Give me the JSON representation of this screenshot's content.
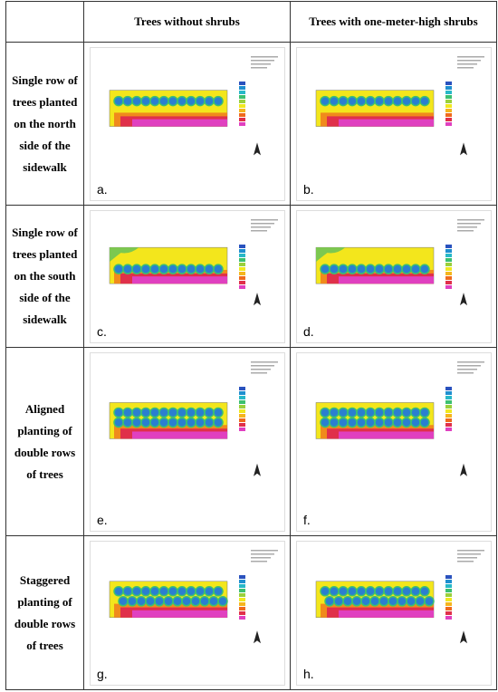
{
  "header": {
    "col1": "Trees without shrubs",
    "col2": "Trees with one-meter-high shrubs"
  },
  "rows": [
    {
      "label": "Single row of trees planted on the north side of the sidewalk",
      "panels": [
        "a.",
        "b."
      ]
    },
    {
      "label": "Single row of trees planted on the south side of the sidewalk",
      "panels": [
        "c.",
        "d."
      ]
    },
    {
      "label": "Aligned planting of double rows of trees",
      "panels": [
        "e.",
        "f."
      ]
    },
    {
      "label": "Staggered planting of double rows of trees",
      "panels": [
        "g.",
        "h."
      ]
    }
  ]
}
